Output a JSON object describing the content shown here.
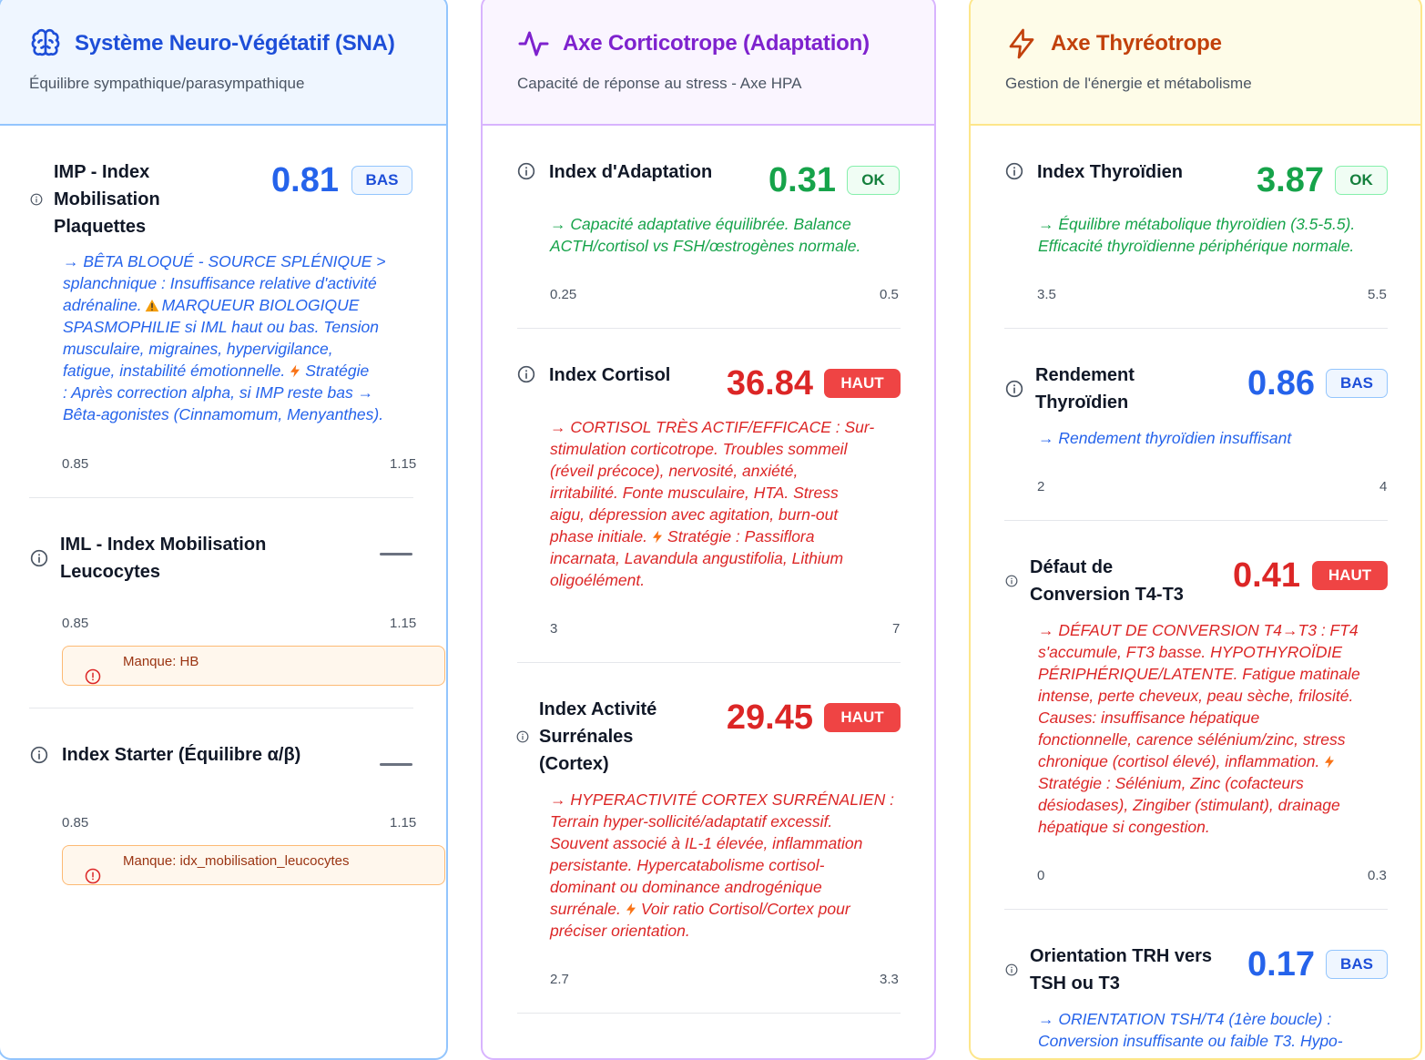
{
  "sna": {
    "title": "Système Neuro-Végétatif (SNA)",
    "subtitle": "Équilibre sympathique/parasympathique",
    "imp": {
      "name_l1": "IMP - Index",
      "name_l2": "Mobilisation",
      "name_l3": "Plaquettes",
      "value": "0.81",
      "badge": "BAS",
      "desc_l1": "→ BÊTA BLOQUÉ - SOURCE SPLÉNIQUE >",
      "desc_l2": "splanchnique : Insuffisance relative d'activité",
      "desc_l3a": "adrénaline.",
      "desc_l3b": "MARQUEUR BIOLOGIQUE",
      "desc_l4": "SPASMOPHILIE si IML haut ou bas. Tension",
      "desc_l5": "musculaire, migraines, hypervigilance,",
      "desc_l6a": "fatigue, instabilité émotionnelle.",
      "desc_l6b": "Stratégie",
      "desc_l7": ": Après correction alpha, si IMP reste bas →",
      "desc_l8": "Bêta-agonistes (Cinnamomum, Menyanthes).",
      "range_min": "0.85",
      "range_max": "1.15"
    },
    "iml": {
      "name_l1": "IML - Index Mobilisation",
      "name_l2": "Leucocytes",
      "value": "—",
      "range_min": "0.85",
      "range_max": "1.15",
      "missing": "Manque: HB"
    },
    "starter": {
      "name": "Index Starter (Équilibre α/β)",
      "value": "—",
      "range_min": "0.85",
      "range_max": "1.15",
      "missing": "Manque: idx_mobilisation_leucocytes"
    }
  },
  "cort": {
    "title": "Axe Corticotrope (Adaptation)",
    "subtitle": "Capacité de réponse au stress - Axe HPA",
    "adapt": {
      "name": "Index d'Adaptation",
      "value": "0.31",
      "badge": "OK",
      "desc_l1": "→ Capacité adaptative équilibrée. Balance",
      "desc_l2": "ACTH/cortisol vs FSH/œstrogènes normale.",
      "range_min": "0.25",
      "range_max": "0.5"
    },
    "cortisol": {
      "name": "Index Cortisol",
      "value": "36.84",
      "badge": "HAUT",
      "desc_l1": "→ CORTISOL TRÈS ACTIF/EFFICACE : Sur-",
      "desc_l2": "stimulation corticotrope. Troubles sommeil",
      "desc_l3": "(réveil précoce), nervosité, anxiété,",
      "desc_l4": "irritabilité. Fonte musculaire, HTA. Stress",
      "desc_l5": "aigu, dépression avec agitation, burn-out",
      "desc_l6a": "phase initiale.",
      "desc_l6b": "Stratégie : Passiflora",
      "desc_l7": "incarnata, Lavandula angustifolia, Lithium",
      "desc_l8": "oligoélément.",
      "range_min": "3",
      "range_max": "7"
    },
    "surrenales": {
      "name_l1": "Index Activité",
      "name_l2": "Surrénales",
      "name_l3": "(Cortex)",
      "value": "29.45",
      "badge": "HAUT",
      "desc_l1": "→ HYPERACTIVITÉ CORTEX SURRÉNALIEN :",
      "desc_l2": "Terrain hyper-sollicité/adaptatif excessif.",
      "desc_l3": "Souvent associé à IL-1 élevée, inflammation",
      "desc_l4": "persistante. Hypercatabolisme cortisol-",
      "desc_l5": "dominant ou dominance androgénique",
      "desc_l6a": "surrénale.",
      "desc_l6b": "Voir ratio Cortisol/Cortex pour",
      "desc_l7": "préciser orientation.",
      "range_min": "2.7",
      "range_max": "3.3"
    }
  },
  "thyr": {
    "title": "Axe Thyréotrope",
    "subtitle": "Gestion de l'énergie et métabolisme",
    "index": {
      "name": "Index Thyroïdien",
      "value": "3.87",
      "badge": "OK",
      "desc_l1": "→ Équilibre métabolique thyroïdien (3.5-5.5).",
      "desc_l2": "Efficacité thyroïdienne périphérique normale.",
      "range_min": "3.5",
      "range_max": "5.5"
    },
    "rendement": {
      "name_l1": "Rendement",
      "name_l2": "Thyroïdien",
      "value": "0.86",
      "badge": "BAS",
      "desc_l1": "→ Rendement thyroïdien insuffisant",
      "range_min": "2",
      "range_max": "4"
    },
    "conversion": {
      "name_l1": "Défaut de",
      "name_l2": "Conversion T4-T3",
      "value": "0.41",
      "badge": "HAUT",
      "desc_l1": "→ DÉFAUT DE CONVERSION T4→T3 : FT4",
      "desc_l2": "s'accumule, FT3 basse. HYPOTHYROÏDIE",
      "desc_l3": "PÉRIPHÉRIQUE/LATENTE. Fatigue matinale",
      "desc_l4": "intense, perte cheveux, peau sèche, frilosité.",
      "desc_l5": "Causes: insuffisance hépatique",
      "desc_l6": "fonctionnelle, carence sélénium/zinc, stress",
      "desc_l7": "chronique (cortisol élevé), inflammation.",
      "desc_l8": "Stratégie : Sélénium, Zinc (cofacteurs",
      "desc_l9": "désiodases), Zingiber (stimulant), drainage",
      "desc_l10": "hépatique si congestion.",
      "range_min": "0",
      "range_max": "0.3"
    },
    "trh": {
      "name_l1": "Orientation TRH vers",
      "name_l2": "TSH ou T3",
      "value": "0.17",
      "badge": "BAS",
      "desc_l1": "→ ORIENTATION TSH/T4 (1ère boucle) :",
      "desc_l2": "Conversion insuffisante ou faible T3. Hypo-"
    }
  },
  "colors": {
    "blue": "#2563eb",
    "green": "#16a34a",
    "red": "#dc2626",
    "purple": "#7e22ce",
    "orange": "#c2410c"
  }
}
